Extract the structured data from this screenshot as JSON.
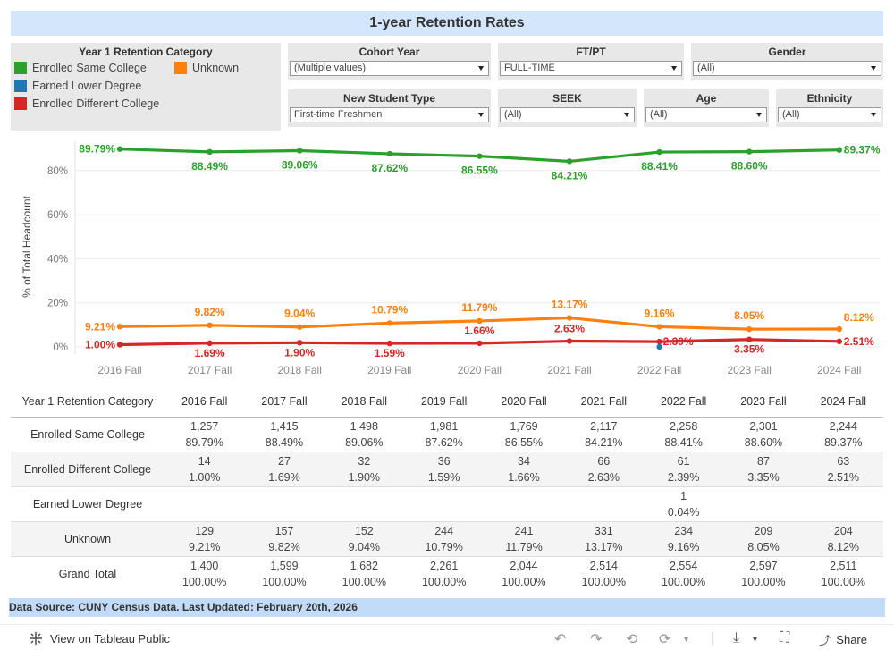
{
  "title": "1-year Retention Rates",
  "legend": {
    "title": "Year 1 Retention Category",
    "items": [
      {
        "label": "Enrolled Same College",
        "color": "#2ca02c"
      },
      {
        "label": "Unknown",
        "color": "#ff7f0e"
      },
      {
        "label": "Earned Lower Degree",
        "color": "#1f77b4"
      },
      {
        "label": "Enrolled Different College",
        "color": "#d62728"
      }
    ]
  },
  "filters": {
    "cohort_year": {
      "label": "Cohort Year",
      "value": "(Multiple values)"
    },
    "ft_pt": {
      "label": "FT/PT",
      "value": "FULL-TIME"
    },
    "gender": {
      "label": "Gender",
      "value": "(All)"
    },
    "new_student_type": {
      "label": "New Student Type",
      "value": "First-time Freshmen"
    },
    "seek": {
      "label": "SEEK",
      "value": "(All)"
    },
    "age": {
      "label": "Age",
      "value": "(All)"
    },
    "ethnicity": {
      "label": "Ethnicity",
      "value": "(All)"
    }
  },
  "chart_data": {
    "type": "line",
    "ylabel": "% of Total Headcount",
    "xlabel": "",
    "yticks": [
      "0%",
      "20%",
      "40%",
      "60%",
      "80%"
    ],
    "ylim": [
      0,
      92
    ],
    "categories": [
      "2016 Fall",
      "2017 Fall",
      "2018 Fall",
      "2019 Fall",
      "2020 Fall",
      "2021 Fall",
      "2022 Fall",
      "2023 Fall",
      "2024 Fall"
    ],
    "series": [
      {
        "name": "Enrolled Same College",
        "color": "#2ca02c",
        "values": [
          89.79,
          88.49,
          89.06,
          87.62,
          86.55,
          84.21,
          88.41,
          88.6,
          89.37
        ],
        "labels": [
          "89.79%",
          "88.49%",
          "89.06%",
          "87.62%",
          "86.55%",
          "84.21%",
          "88.41%",
          "88.60%",
          "89.37%"
        ]
      },
      {
        "name": "Unknown",
        "color": "#ff7f0e",
        "values": [
          9.21,
          9.82,
          9.04,
          10.79,
          11.79,
          13.17,
          9.16,
          8.05,
          8.12
        ],
        "labels": [
          "9.21%",
          "9.82%",
          "9.04%",
          "10.79%",
          "11.79%",
          "13.17%",
          "9.16%",
          "8.05%",
          "8.12%"
        ]
      },
      {
        "name": "Enrolled Different College",
        "color": "#d62728",
        "values": [
          1.0,
          1.69,
          1.9,
          1.59,
          1.66,
          2.63,
          2.39,
          3.35,
          2.51
        ],
        "labels": [
          "1.00%",
          "1.69%",
          "1.90%",
          "1.59%",
          "1.66%",
          "2.63%",
          "2.39%",
          "3.35%",
          "2.51%"
        ]
      },
      {
        "name": "Earned Lower Degree",
        "color": "#1f77b4",
        "values": [
          null,
          null,
          null,
          null,
          null,
          null,
          0.04,
          null,
          null
        ],
        "labels": [
          "",
          "",
          "",
          "",
          "",
          "",
          "",
          "",
          ""
        ]
      }
    ]
  },
  "table": {
    "header_label": "Year 1 Retention Category",
    "columns": [
      "2016 Fall",
      "2017 Fall",
      "2018 Fall",
      "2019 Fall",
      "2020 Fall",
      "2021 Fall",
      "2022 Fall",
      "2023 Fall",
      "2024 Fall"
    ],
    "rows": [
      {
        "label": "Enrolled Same College",
        "counts": [
          "1,257",
          "1,415",
          "1,498",
          "1,981",
          "1,769",
          "2,117",
          "2,258",
          "2,301",
          "2,244"
        ],
        "pcts": [
          "89.79%",
          "88.49%",
          "89.06%",
          "87.62%",
          "86.55%",
          "84.21%",
          "88.41%",
          "88.60%",
          "89.37%"
        ]
      },
      {
        "label": "Enrolled Different College",
        "counts": [
          "14",
          "27",
          "32",
          "36",
          "34",
          "66",
          "61",
          "87",
          "63"
        ],
        "pcts": [
          "1.00%",
          "1.69%",
          "1.90%",
          "1.59%",
          "1.66%",
          "2.63%",
          "2.39%",
          "3.35%",
          "2.51%"
        ]
      },
      {
        "label": "Earned Lower Degree",
        "counts": [
          "",
          "",
          "",
          "",
          "",
          "",
          "1",
          "",
          ""
        ],
        "pcts": [
          "",
          "",
          "",
          "",
          "",
          "",
          "0.04%",
          "",
          ""
        ]
      },
      {
        "label": "Unknown",
        "counts": [
          "129",
          "157",
          "152",
          "244",
          "241",
          "331",
          "234",
          "209",
          "204"
        ],
        "pcts": [
          "9.21%",
          "9.82%",
          "9.04%",
          "10.79%",
          "11.79%",
          "13.17%",
          "9.16%",
          "8.05%",
          "8.12%"
        ]
      },
      {
        "label": "Grand Total",
        "counts": [
          "1,400",
          "1,599",
          "1,682",
          "2,261",
          "2,044",
          "2,514",
          "2,554",
          "2,597",
          "2,511"
        ],
        "pcts": [
          "100.00%",
          "100.00%",
          "100.00%",
          "100.00%",
          "100.00%",
          "100.00%",
          "100.00%",
          "100.00%",
          "100.00%"
        ]
      }
    ]
  },
  "source": "Data Source: CUNY Census Data. Last Updated: February 20th, 2026",
  "footer": {
    "view_label": "View on Tableau Public",
    "share_label": "Share",
    "icons": [
      "undo-icon",
      "redo-icon",
      "revert-icon",
      "refresh-icon",
      "download-icon",
      "fullscreen-icon",
      "share-icon",
      "tableau-logo-icon"
    ]
  }
}
